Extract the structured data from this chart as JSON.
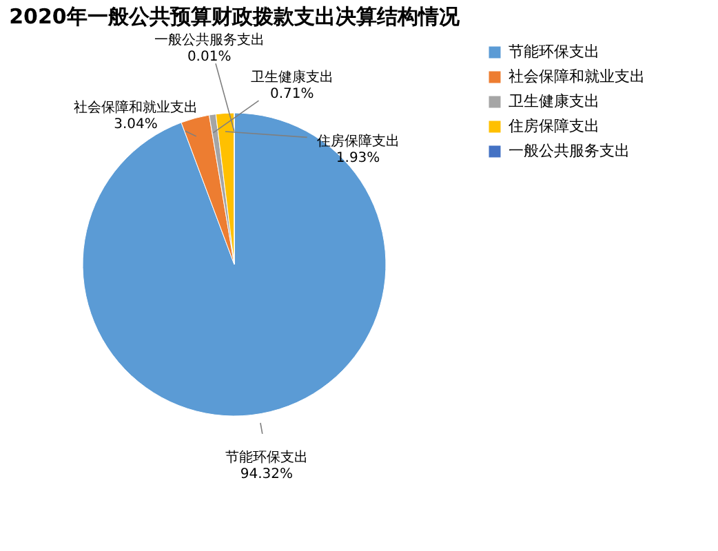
{
  "chart_data": {
    "type": "pie",
    "title": "2020年一般公共预算财政拨款支出决算结构情况",
    "categories": [
      "节能环保支出",
      "社会保障和就业支出",
      "卫生健康支出",
      "住房保障支出",
      "一般公共服务支出"
    ],
    "values": [
      94.32,
      3.04,
      0.71,
      1.93,
      0.01
    ],
    "value_labels": [
      "94.32%",
      "3.04%",
      "0.71%",
      "1.93%",
      "0.01%"
    ],
    "colors": [
      "#5b9bd5",
      "#ed7d31",
      "#a5a5a5",
      "#ffc000",
      "#4472c4"
    ],
    "legend": "right"
  }
}
